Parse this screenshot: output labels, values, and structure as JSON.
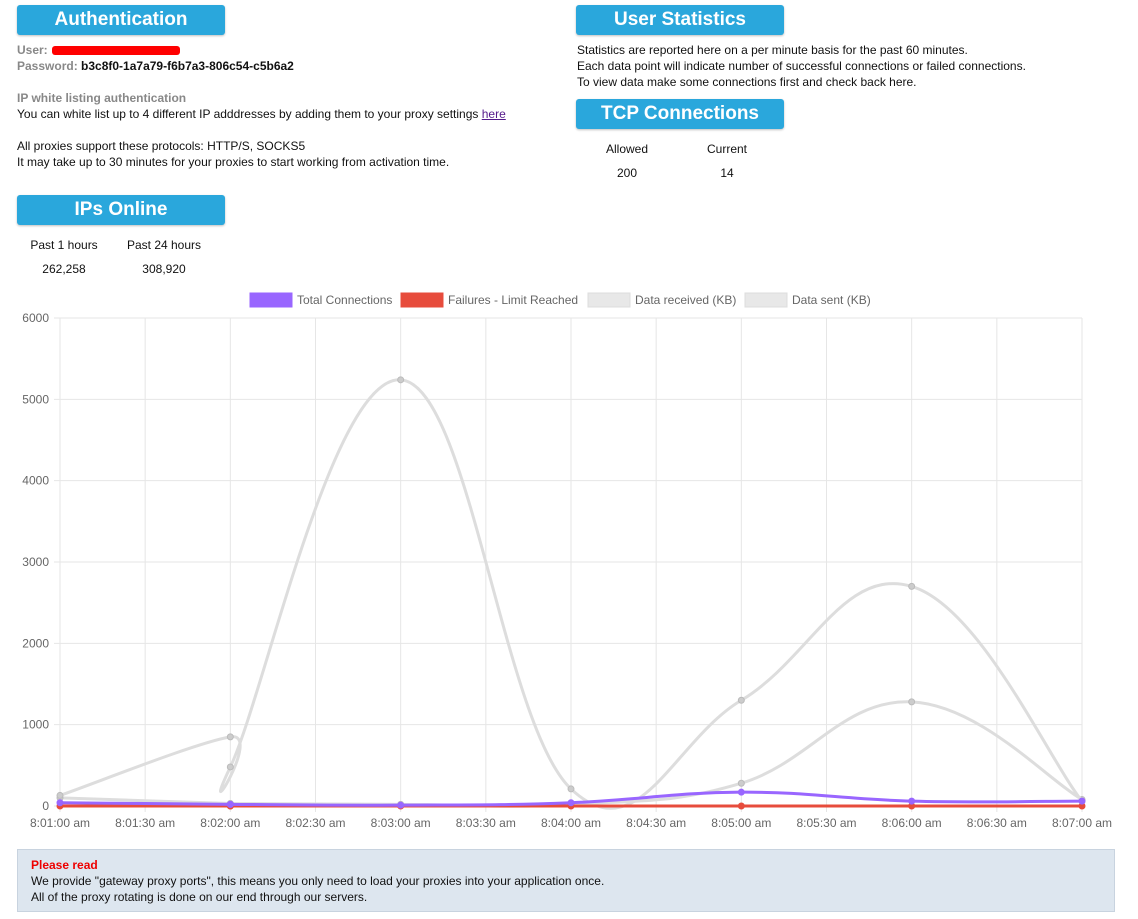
{
  "auth": {
    "header": "Authentication",
    "user_label": "User:",
    "password_label": "Password:",
    "password_value": "b3c8f0-1a7a79-f6b7a3-806c54-c5b6a2",
    "whitelist_title": "IP white listing authentication",
    "whitelist_text": "You can white list up to 4 different IP adddresses by adding them to your proxy settings",
    "whitelist_link": "here",
    "protocols_text": "All proxies support these protocols: HTTP/S, SOCKS5",
    "activation_text": "It may take up to 30 minutes for your proxies to start working from activation time."
  },
  "user_stats": {
    "header": "User Statistics",
    "line1": "Statistics are reported here on a per minute basis for the past 60 minutes.",
    "line2": "Each data point will indicate number of successful connections or failed connections.",
    "line3": "To view data make some connections first and check back here."
  },
  "tcp": {
    "header": "TCP Connections",
    "allowed_label": "Allowed",
    "allowed_value": "200",
    "current_label": "Current",
    "current_value": "14"
  },
  "ips_online": {
    "header": "IPs Online",
    "past1_label": "Past 1 hours",
    "past1_value": "262,258",
    "past24_label": "Past 24 hours",
    "past24_value": "308,920"
  },
  "chart_data": {
    "type": "line",
    "x": [
      "8:01:00 am",
      "8:02:00 am",
      "8:02:00 am",
      "8:03:00 am",
      "8:04:00 am",
      "8:05:00 am",
      "8:06:00 am",
      "8:07:00 am"
    ],
    "x_ticks": [
      "8:01:00 am",
      "8:01:30 am",
      "8:02:00 am",
      "8:02:30 am",
      "8:03:00 am",
      "8:03:30 am",
      "8:04:00 am",
      "8:04:30 am",
      "8:05:00 am",
      "8:05:30 am",
      "8:06:00 am",
      "8:06:30 am",
      "8:07:00 am"
    ],
    "ylim": [
      0,
      6000
    ],
    "y_ticks": [
      0,
      1000,
      2000,
      3000,
      4000,
      5000,
      6000
    ],
    "grid": true,
    "legend_position": "top",
    "series": [
      {
        "name": "Total Connections",
        "color": "#9966ff",
        "fill": "#9966ff",
        "points": [
          [
            0,
            40
          ],
          [
            2,
            20
          ],
          [
            2,
            20
          ],
          [
            4,
            10
          ],
          [
            6,
            40
          ],
          [
            8,
            170
          ],
          [
            10,
            60
          ],
          [
            12,
            60
          ]
        ]
      },
      {
        "name": "Failures - Limit Reached",
        "color": "#e74c3c",
        "fill": "#e74c3c",
        "points": [
          [
            0,
            0
          ],
          [
            2,
            0
          ],
          [
            2,
            0
          ],
          [
            4,
            0
          ],
          [
            6,
            0
          ],
          [
            8,
            0
          ],
          [
            10,
            0
          ],
          [
            12,
            0
          ]
        ]
      },
      {
        "name": "Data received (KB)",
        "color": "#dddddd",
        "fill": "#e8e8e8",
        "points": [
          [
            0,
            130
          ],
          [
            2,
            850
          ],
          [
            2,
            480
          ],
          [
            4,
            5240
          ],
          [
            6,
            210
          ],
          [
            8,
            1300
          ],
          [
            10,
            2700
          ],
          [
            12,
            60
          ]
        ]
      },
      {
        "name": "Data sent (KB)",
        "color": "#dddddd",
        "fill": "#e8e8e8",
        "points": [
          [
            0,
            100
          ],
          [
            2,
            30
          ],
          [
            2,
            30
          ],
          [
            4,
            20
          ],
          [
            6,
            20
          ],
          [
            8,
            280
          ],
          [
            10,
            1280
          ],
          [
            12,
            80
          ]
        ]
      }
    ]
  },
  "notice": {
    "title": "Please read",
    "line1": "We provide \"gateway proxy ports\", this means you only need to load your proxies into your application once.",
    "line2": "All of the proxy rotating is done on our end through our servers."
  }
}
